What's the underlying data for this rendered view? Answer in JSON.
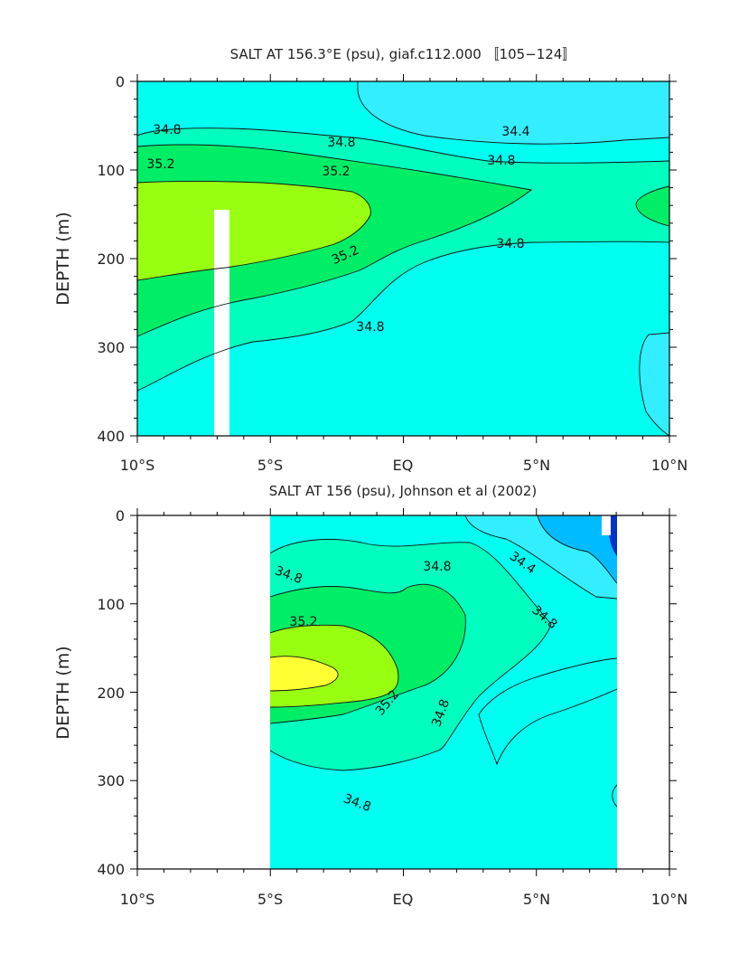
{
  "chart_data": [
    {
      "type": "contour",
      "title": "SALT AT 156.3°E (psu), giaf.c112.000 〚105−124〛",
      "ylabel": "DEPTH (m)",
      "xlabel": "",
      "x_ticks": [
        "10°S",
        "5°S",
        "EQ",
        "5°N",
        "10°N"
      ],
      "y_ticks": [
        "0",
        "100",
        "200",
        "300",
        "400"
      ],
      "xlim": [
        -10,
        10
      ],
      "ylim": [
        400,
        0
      ],
      "contour_labels": [
        "34.8",
        "34.8",
        "34.4",
        "34.8",
        "35.2",
        "35.2",
        "35.2",
        "34.8",
        "34.8"
      ],
      "colors": {
        "fresh": "#33eeff",
        "base": "#00fff0",
        "c348": "#00ffbf",
        "c352": "#00ee66",
        "c356": "#99ff11",
        "c360": "#ffff33"
      }
    },
    {
      "type": "contour",
      "title": "SALT AT 156 (psu), Johnson et al (2002)",
      "ylabel": "DEPTH (m)",
      "xlabel": "",
      "x_ticks": [
        "10°S",
        "5°S",
        "EQ",
        "5°N",
        "10°N"
      ],
      "y_ticks": [
        "0",
        "100",
        "200",
        "300",
        "400"
      ],
      "xlim": [
        -10,
        10
      ],
      "ylim": [
        400,
        0
      ],
      "data_extent": [
        -5,
        8
      ],
      "contour_labels": [
        "34.8",
        "34.8",
        "34.4",
        "34.8",
        "35.2",
        "35.2",
        "34.8",
        "34.8"
      ],
      "colors": {
        "fresh": "#33eeff",
        "fresher": "#00bbff",
        "freshest": "#0033cc",
        "base": "#00fff0",
        "c348": "#00ffbf",
        "c352": "#00ee66",
        "c356": "#99ff11",
        "c360": "#ffff33"
      }
    }
  ]
}
